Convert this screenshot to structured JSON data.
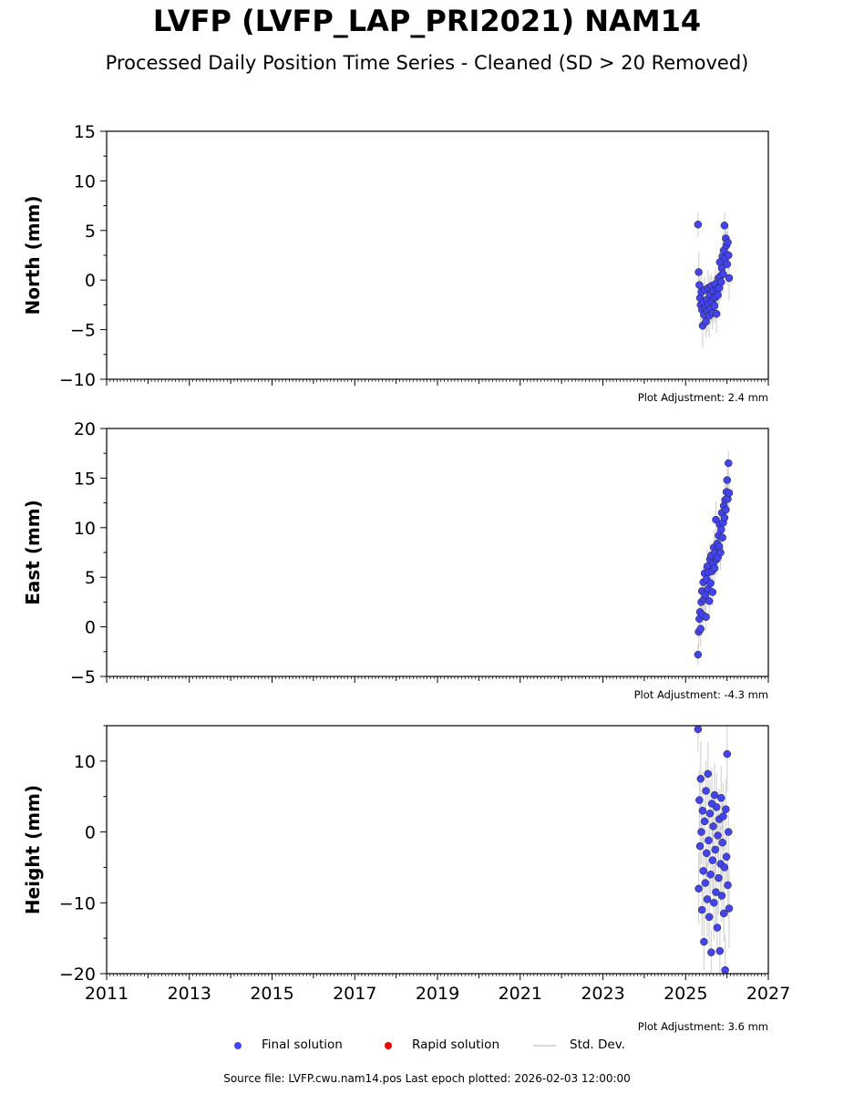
{
  "title": "LVFP (LVFP_LAP_PRI2021) NAM14",
  "subtitle": "Processed Daily Position Time Series - Cleaned (SD > 20 Removed)",
  "legend": {
    "final": "Final solution",
    "rapid": "Rapid solution",
    "std": "Std. Dev.",
    "final_color": "#4444ee",
    "rapid_color": "#ee0000",
    "std_color": "#cccccc"
  },
  "source": "Source file: LVFP.cwu.nam14.pos  Last epoch plotted: 2026-02-03 12:00:00",
  "chart_data": {
    "type": "scatter",
    "xlim": [
      2011,
      2027
    ],
    "xticks": [
      2011,
      2013,
      2015,
      2017,
      2019,
      2021,
      2023,
      2025,
      2027
    ],
    "xticklabels": [
      "2011",
      "2013",
      "2015",
      "2017",
      "2019",
      "2021",
      "2023",
      "2025",
      "2027"
    ],
    "t": [
      2025.3,
      2025.316,
      2025.332,
      2025.348,
      2025.364,
      2025.38,
      2025.396,
      2025.412,
      2025.428,
      2025.444,
      2025.46,
      2025.476,
      2025.492,
      2025.508,
      2025.524,
      2025.54,
      2025.556,
      2025.572,
      2025.588,
      2025.604,
      2025.62,
      2025.636,
      2025.652,
      2025.668,
      2025.684,
      2025.7,
      2025.716,
      2025.732,
      2025.748,
      2025.764,
      2025.78,
      2025.796,
      2025.812,
      2025.828,
      2025.844,
      2025.86,
      2025.876,
      2025.892,
      2025.908,
      2025.924,
      2025.94,
      2025.956,
      2025.972,
      2025.988,
      2026.004,
      2026.02,
      2026.036,
      2026.052
    ],
    "panels": [
      {
        "ylabel": "North (mm)",
        "ylim": [
          -10,
          15
        ],
        "yticks": [
          -10,
          -5,
          0,
          5,
          10,
          15
        ],
        "yticklabels": [
          "−10",
          "−5",
          "0",
          "5",
          "10",
          "15"
        ],
        "adjustment": "Plot Adjustment: 2.4 mm",
        "sd": 1.8,
        "values": [
          5.6,
          0.8,
          -0.5,
          -1.8,
          -2.5,
          -1.2,
          -3.0,
          -4.6,
          -2.2,
          -3.5,
          -1.0,
          -2.8,
          -4.2,
          -2.0,
          -3.1,
          -0.8,
          -2.4,
          -3.6,
          -1.5,
          -2.9,
          -0.6,
          -2.2,
          -3.3,
          -1.1,
          -1.8,
          -2.6,
          -0.4,
          -1.7,
          -3.4,
          -0.9,
          -1.5,
          0.2,
          -0.8,
          1.8,
          0.4,
          -0.2,
          1.2,
          2.4,
          0.6,
          3.0,
          5.5,
          2.2,
          4.2,
          3.5,
          1.6,
          3.8,
          2.5,
          0.2
        ]
      },
      {
        "ylabel": "East (mm)",
        "ylim": [
          -5,
          20
        ],
        "yticks": [
          -5,
          0,
          5,
          10,
          15,
          20
        ],
        "yticklabels": [
          "−5",
          "0",
          "5",
          "10",
          "15",
          "20"
        ],
        "adjustment": "Plot Adjustment: -4.3 mm",
        "sd": 1.5,
        "values": [
          -2.8,
          -0.5,
          0.8,
          1.5,
          -0.2,
          2.5,
          3.6,
          1.2,
          4.5,
          2.8,
          5.4,
          3.2,
          1.0,
          4.8,
          6.1,
          3.8,
          5.5,
          2.6,
          6.8,
          4.4,
          7.2,
          5.6,
          3.5,
          6.4,
          8.0,
          5.9,
          7.5,
          10.8,
          6.8,
          8.4,
          7.0,
          9.2,
          8.1,
          10.3,
          7.5,
          9.8,
          11.5,
          9.0,
          10.5,
          12.2,
          11.0,
          12.8,
          11.8,
          13.6,
          14.8,
          12.9,
          16.5,
          13.5
        ]
      },
      {
        "ylabel": "Height (mm)",
        "ylim": [
          -20,
          15
        ],
        "yticks": [
          -20,
          -10,
          0,
          10
        ],
        "yticklabels": [
          "−20",
          "−10",
          "0",
          "10"
        ],
        "adjustment": "Plot Adjustment: 3.6 mm",
        "sd": 4.5,
        "values": [
          14.5,
          -8.0,
          4.5,
          -2.0,
          7.5,
          0.0,
          -11.0,
          3.0,
          -5.5,
          -15.5,
          1.5,
          -7.2,
          5.8,
          -3.0,
          -9.5,
          8.2,
          -1.2,
          -12.0,
          2.6,
          -6.0,
          -17.0,
          4.0,
          -4.0,
          0.8,
          -10.0,
          5.2,
          -2.5,
          -8.5,
          3.5,
          -13.5,
          -0.5,
          -6.5,
          1.8,
          -16.8,
          -4.5,
          4.8,
          -9.0,
          -1.5,
          2.2,
          -11.5,
          -5.0,
          -19.5,
          3.2,
          -3.5,
          11.0,
          -7.5,
          0.0,
          -10.8
        ]
      }
    ]
  }
}
